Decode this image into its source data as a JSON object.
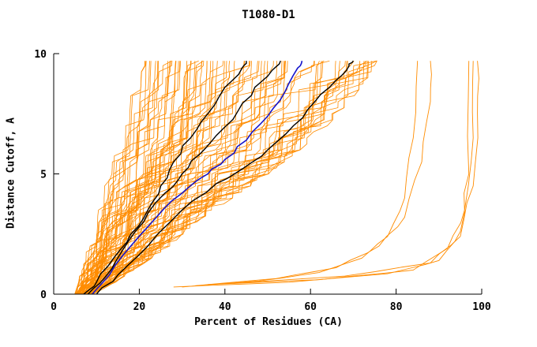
{
  "chart_data": {
    "type": "line",
    "title": "T1080-D1",
    "xlabel": "Percent of Residues (CA)",
    "ylabel": "Distance Cutoff, A",
    "xlim": [
      0,
      100
    ],
    "ylim": [
      0,
      10
    ],
    "xticks": [
      0,
      20,
      40,
      60,
      80,
      100
    ],
    "yticks": [
      0,
      5,
      10
    ],
    "grid": false,
    "legend": "none",
    "colors": {
      "ensemble": "#ff8c00",
      "highlight": "#1414cc",
      "reference": "#000000",
      "axis": "#000000",
      "background": "#ffffff"
    },
    "highlight_series": {
      "name": "highlighted-model-blue",
      "color": "#1414cc",
      "points": [
        [
          9,
          0
        ],
        [
          13,
          0.8
        ],
        [
          18,
          2.0
        ],
        [
          24,
          3.2
        ],
        [
          30,
          4.2
        ],
        [
          36,
          5.0
        ],
        [
          40,
          5.6
        ],
        [
          45,
          6.4
        ],
        [
          50,
          7.4
        ],
        [
          54,
          8.4
        ],
        [
          57,
          9.4
        ],
        [
          58,
          9.7
        ]
      ]
    },
    "reference_series": [
      {
        "name": "black-model-1",
        "points": [
          [
            7,
            0
          ],
          [
            10,
            0.5
          ],
          [
            14,
            1.5
          ],
          [
            18,
            2.5
          ],
          [
            22,
            3.5
          ],
          [
            25,
            4.5
          ],
          [
            28,
            5.5
          ],
          [
            32,
            6.5
          ],
          [
            36,
            7.5
          ],
          [
            40,
            8.6
          ],
          [
            44,
            9.4
          ],
          [
            45,
            9.7
          ]
        ]
      },
      {
        "name": "black-model-2",
        "points": [
          [
            8,
            0
          ],
          [
            12,
            0.7
          ],
          [
            16,
            1.8
          ],
          [
            21,
            3.0
          ],
          [
            26,
            4.2
          ],
          [
            30,
            5.0
          ],
          [
            34,
            5.8
          ],
          [
            38,
            6.6
          ],
          [
            43,
            7.6
          ],
          [
            47,
            8.6
          ],
          [
            51,
            9.3
          ],
          [
            53,
            9.7
          ]
        ]
      },
      {
        "name": "black-model-3",
        "points": [
          [
            10,
            0
          ],
          [
            15,
            0.8
          ],
          [
            22,
            2.0
          ],
          [
            30,
            3.5
          ],
          [
            38,
            4.6
          ],
          [
            44,
            5.2
          ],
          [
            50,
            6.0
          ],
          [
            56,
            7.0
          ],
          [
            61,
            8.0
          ],
          [
            66,
            8.9
          ],
          [
            69,
            9.5
          ],
          [
            70,
            9.7
          ]
        ]
      }
    ],
    "outlier_series": [
      {
        "name": "orange-outlier-1",
        "points": [
          [
            30,
            0.3
          ],
          [
            48,
            0.55
          ],
          [
            62,
            0.9
          ],
          [
            72,
            1.5
          ],
          [
            78,
            2.4
          ],
          [
            82,
            4.0
          ],
          [
            84,
            6.5
          ],
          [
            85,
            9.7
          ]
        ]
      },
      {
        "name": "orange-outlier-2",
        "points": [
          [
            33,
            0.35
          ],
          [
            52,
            0.65
          ],
          [
            66,
            1.1
          ],
          [
            76,
            2.0
          ],
          [
            82,
            3.2
          ],
          [
            86,
            5.5
          ],
          [
            88,
            8.0
          ],
          [
            88,
            9.7
          ]
        ]
      },
      {
        "name": "orange-outlier-3",
        "points": [
          [
            28,
            0.3
          ],
          [
            55,
            0.5
          ],
          [
            78,
            0.85
          ],
          [
            90,
            1.4
          ],
          [
            95,
            2.6
          ],
          [
            97,
            5.0
          ],
          [
            97,
            9.7
          ]
        ]
      },
      {
        "name": "orange-outlier-4",
        "points": [
          [
            36,
            0.4
          ],
          [
            62,
            0.6
          ],
          [
            84,
            1.0
          ],
          [
            92,
            1.9
          ],
          [
            96,
            3.5
          ],
          [
            98,
            6.5
          ],
          [
            98,
            9.7
          ]
        ]
      },
      {
        "name": "orange-outlier-5",
        "points": [
          [
            42,
            0.45
          ],
          [
            68,
            0.75
          ],
          [
            88,
            1.3
          ],
          [
            95,
            2.4
          ],
          [
            98,
            4.5
          ],
          [
            99,
            7.5
          ],
          [
            99,
            9.7
          ]
        ]
      }
    ],
    "ensemble": {
      "description": "dense fan of orange model curves, cumulative percent of CA residues under each distance cutoff",
      "count": 80,
      "seed": 42,
      "color": "#ff8c00",
      "y_top": 9.7,
      "anchor_y": [
        0,
        0.5,
        1,
        1.5,
        2,
        3,
        4,
        5,
        6,
        7,
        8,
        9,
        9.7
      ],
      "x_min": [
        5,
        6,
        6.5,
        7,
        7.5,
        8.5,
        10,
        11.5,
        12,
        12.5,
        13,
        13,
        13
      ],
      "x_max": [
        9,
        14,
        18,
        22,
        26,
        32,
        40,
        48,
        55,
        61,
        66,
        70,
        72
      ]
    }
  }
}
